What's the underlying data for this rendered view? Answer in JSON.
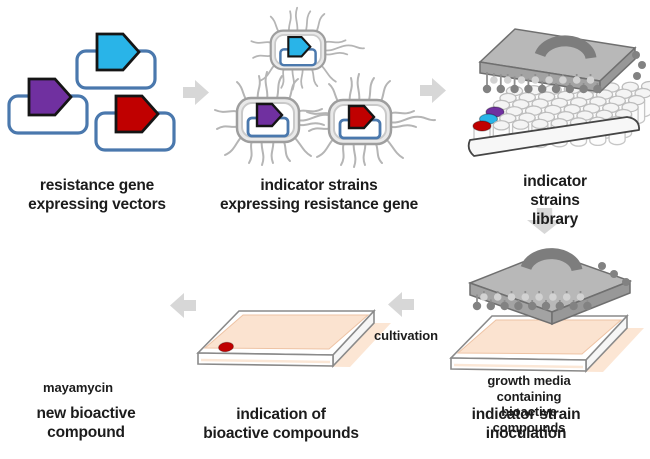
{
  "figure": {
    "steps": {
      "vectors_label": "resistance gene\nexpressing vectors",
      "strains_label": "indicator strains\nexpressing resistance gene",
      "library_label": "indicator strains\nlibrary",
      "growth_media_label": "growth media containing\nbioactive compounds",
      "inoculation_label": "indicator strain\ninoculation",
      "cultivation_label": "cultivation",
      "indication_label": "indication of\nbioactive compounds",
      "compound_name": "mayamycin",
      "new_compound_label": "new bioactive\ncompound"
    },
    "colors": {
      "cyan": "#29b4e8",
      "purple": "#7030a0",
      "red": "#c00000",
      "vector_outline": "#4a78ad",
      "media_peach": "#fbe3d0",
      "media_shadow": "#fce6d4",
      "arrow_gray": "#d7d7d7",
      "lid_gray": "#b8b8b8",
      "lid_handle_gray": "#7d7d7d",
      "flagella_gray": "#b5b5b5",
      "text": "#1c1c1c"
    }
  }
}
